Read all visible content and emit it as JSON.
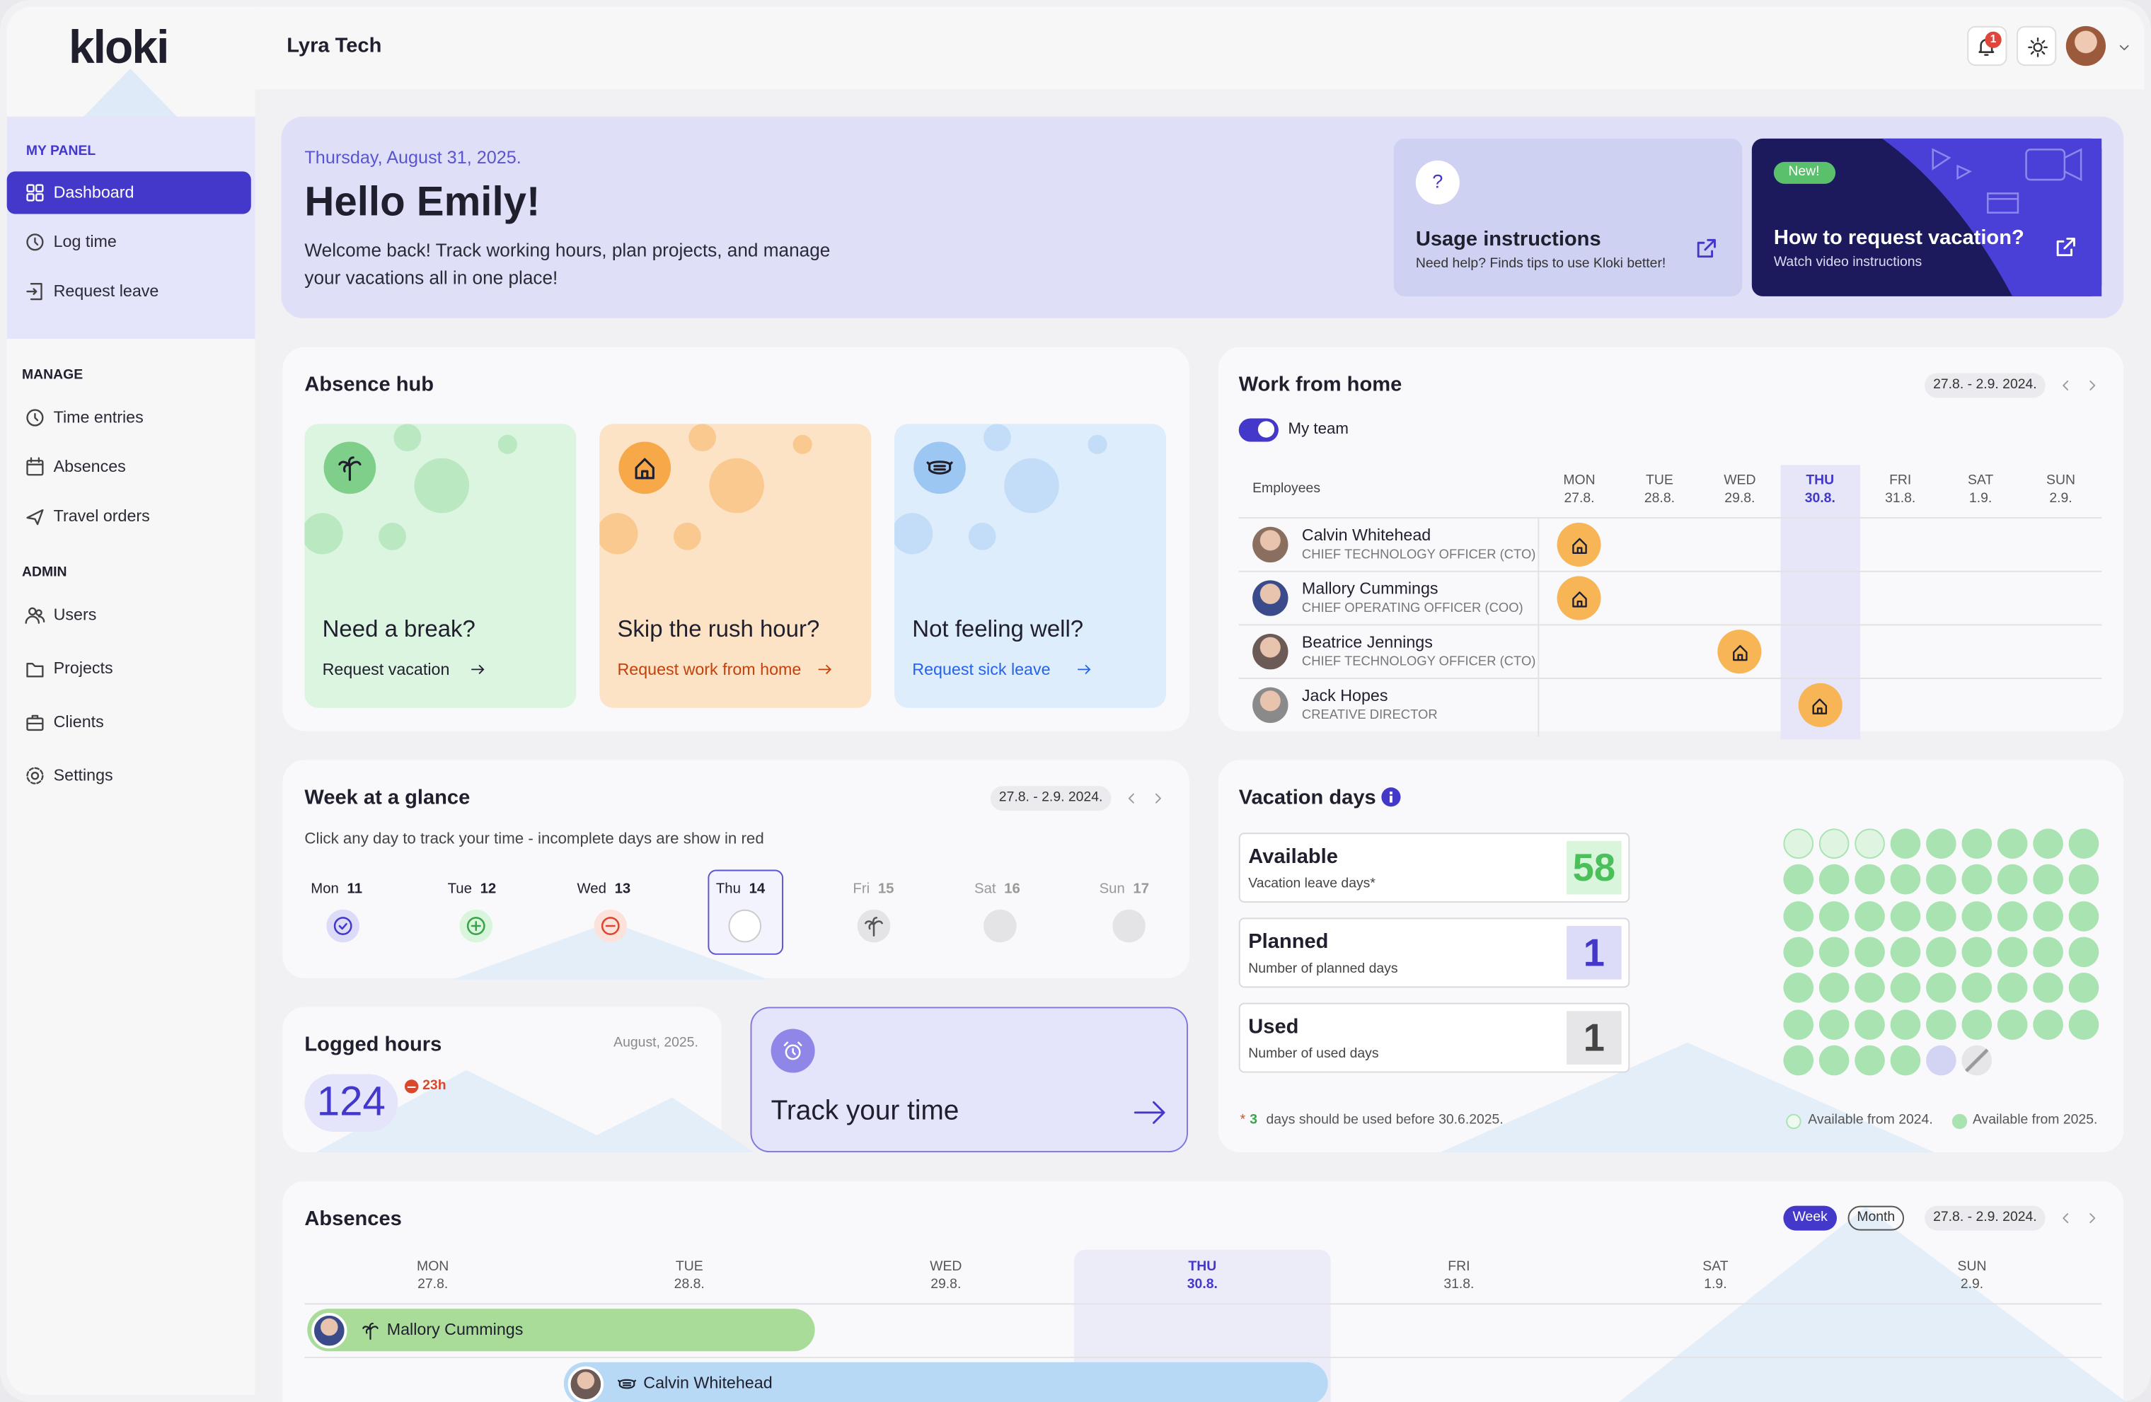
{
  "brand": "kloki",
  "company": "Lyra Tech",
  "notifications": 1,
  "sidebar": {
    "active": "Dashboard",
    "sections": [
      {
        "title": "MY PANEL",
        "items": [
          "Dashboard",
          "Log time",
          "Request leave"
        ]
      },
      {
        "title": "MANAGE",
        "items": [
          "Time entries",
          "Absences",
          "Travel orders"
        ]
      },
      {
        "title": "ADMIN",
        "items": [
          "Users",
          "Projects",
          "Clients",
          "Settings"
        ]
      }
    ]
  },
  "welcome": {
    "date": "Thursday, August 31, 2025.",
    "greeting": "Hello Emily!",
    "text": "Welcome back! Track working hours, plan projects, and manage your vacations all in one place!"
  },
  "promos": [
    {
      "icon_text": "?",
      "title": "Usage instructions",
      "text": "Need help? Finds tips to use Kloki better!"
    },
    {
      "badge": "New!",
      "title": "How to request vacation?",
      "text": "Watch video instructions"
    }
  ],
  "absence_hub": {
    "title": "Absence hub",
    "cards": [
      {
        "title": "Need a break?",
        "link": "Request vacation",
        "theme": "green",
        "icon": "palm"
      },
      {
        "title": "Skip the rush hour?",
        "link": "Request work from home",
        "theme": "orange",
        "icon": "home"
      },
      {
        "title": "Not feeling well?",
        "link": "Request sick leave",
        "theme": "blue",
        "icon": "mask"
      }
    ]
  },
  "work_from_home": {
    "title": "Work from home",
    "range": "27.8. - 2.9. 2024.",
    "toggle": "My team",
    "employees_label": "Employees",
    "today": "THU",
    "days": [
      {
        "day": "MON",
        "date": "27.8."
      },
      {
        "day": "TUE",
        "date": "28.8."
      },
      {
        "day": "WED",
        "date": "29.8."
      },
      {
        "day": "THU",
        "date": "30.8."
      },
      {
        "day": "FRI",
        "date": "31.8."
      },
      {
        "day": "SAT",
        "date": "1.9."
      },
      {
        "day": "SUN",
        "date": "2.9."
      }
    ],
    "rows": [
      {
        "name": "Calvin Whitehead",
        "role": "CHIEF TECHNOLOGY OFFICER (CTO)",
        "wfh_day": "MON"
      },
      {
        "name": "Mallory Cummings",
        "role": "CHIEF OPERATING OFFICER (COO)",
        "wfh_day": "MON"
      },
      {
        "name": "Beatrice Jennings",
        "role": "CHIEF TECHNOLOGY OFFICER (CTO)",
        "wfh_day": "WED"
      },
      {
        "name": "Jack Hopes",
        "role": "CREATIVE DIRECTOR",
        "wfh_day": "THU"
      }
    ]
  },
  "week": {
    "title": "Week at a glance",
    "range": "27.8. - 2.9. 2024.",
    "hint": "Click any day to track your time - incomplete days are show in red",
    "days": [
      {
        "day": "Mon",
        "date": 11,
        "status": "done"
      },
      {
        "day": "Tue",
        "date": 12,
        "status": "add"
      },
      {
        "day": "Wed",
        "date": 13,
        "status": "missing"
      },
      {
        "day": "Thu",
        "date": 14,
        "status": "selected"
      },
      {
        "day": "Fri",
        "date": 15,
        "status": "leave"
      },
      {
        "day": "Sat",
        "date": 16,
        "status": "weekend"
      },
      {
        "day": "Sun",
        "date": 17,
        "status": "weekend"
      }
    ]
  },
  "logged_hours": {
    "title": "Logged hours",
    "period": "August, 2025.",
    "hours": 124,
    "missing": "23h"
  },
  "track": {
    "title": "Track your time"
  },
  "vacation": {
    "title": "Vacation days",
    "stats": [
      {
        "label": "Available",
        "sub": "Vacation leave days*",
        "value": 58,
        "theme": "green"
      },
      {
        "label": "Planned",
        "sub": "Number of planned days",
        "value": 1,
        "theme": "purple"
      },
      {
        "label": "Used",
        "sub": "Number of used days",
        "value": 1,
        "theme": "gray"
      }
    ],
    "note_mark": "*",
    "note_count": 3,
    "note": "days should be used before 30.6.2025.",
    "legend": [
      "Available from 2024.",
      "Available from 2025."
    ]
  },
  "absences": {
    "title": "Absences",
    "views": [
      "Week",
      "Month"
    ],
    "active_view": "Week",
    "range": "27.8. - 2.9. 2024.",
    "today": "THU",
    "days": [
      {
        "day": "MON",
        "date": "27.8."
      },
      {
        "day": "TUE",
        "date": "28.8."
      },
      {
        "day": "WED",
        "date": "29.8."
      },
      {
        "day": "THU",
        "date": "30.8."
      },
      {
        "day": "FRI",
        "date": "31.8."
      },
      {
        "day": "SAT",
        "date": "1.9."
      },
      {
        "day": "SUN",
        "date": "2.9."
      }
    ],
    "rows": [
      {
        "name": "Mallory Cummings",
        "type": "vacation",
        "start": "MON",
        "end": "TUE"
      },
      {
        "name": "Calvin Whitehead",
        "type": "sick",
        "start": "TUE",
        "end": "THU"
      }
    ]
  }
}
